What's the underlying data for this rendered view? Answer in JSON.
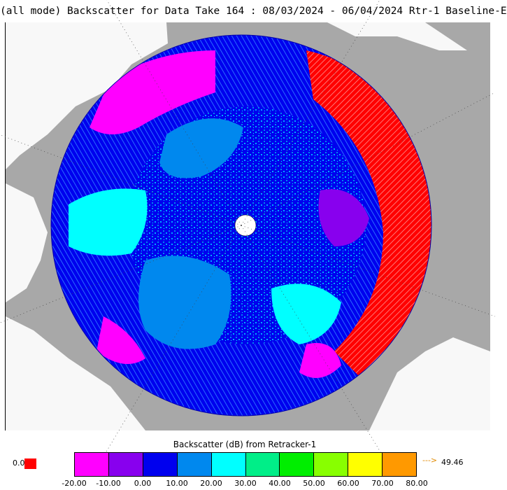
{
  "title": "(all mode) Backscatter for Data Take 164 : 08/03/2024 - 06/04/2024 Rtr-1 Baseline-E",
  "colorbar": {
    "title": "Backscatter (dB) from Retracker-1",
    "zero_label": "0.0",
    "zero_color": "#ff0000",
    "colors": [
      "#ff00ff",
      "#8800ee",
      "#0000ee",
      "#0088ee",
      "#00ffff",
      "#00ee88",
      "#00ee00",
      "#88ff00",
      "#ffff00",
      "#ff9900"
    ],
    "tick_labels": [
      "-20.00",
      "-10.00",
      "0.00",
      "10.00",
      "20.00",
      "30.00",
      "40.00",
      "50.00",
      "60.00",
      "70.00",
      "80.00"
    ],
    "over_arrow": "--->",
    "over_value": "49.46"
  },
  "map": {
    "land_color": "#a8a8a8",
    "ocean_color": "#f8f8f8",
    "region_colors": {
      "high_backscatter": "#ff0000",
      "multiyear_ice": "#0000ee",
      "mixed_ice": "#0088ee",
      "thin_ice": "#00ffff",
      "low_backscatter": "#ff00ff",
      "very_low": "#8800ee"
    }
  }
}
